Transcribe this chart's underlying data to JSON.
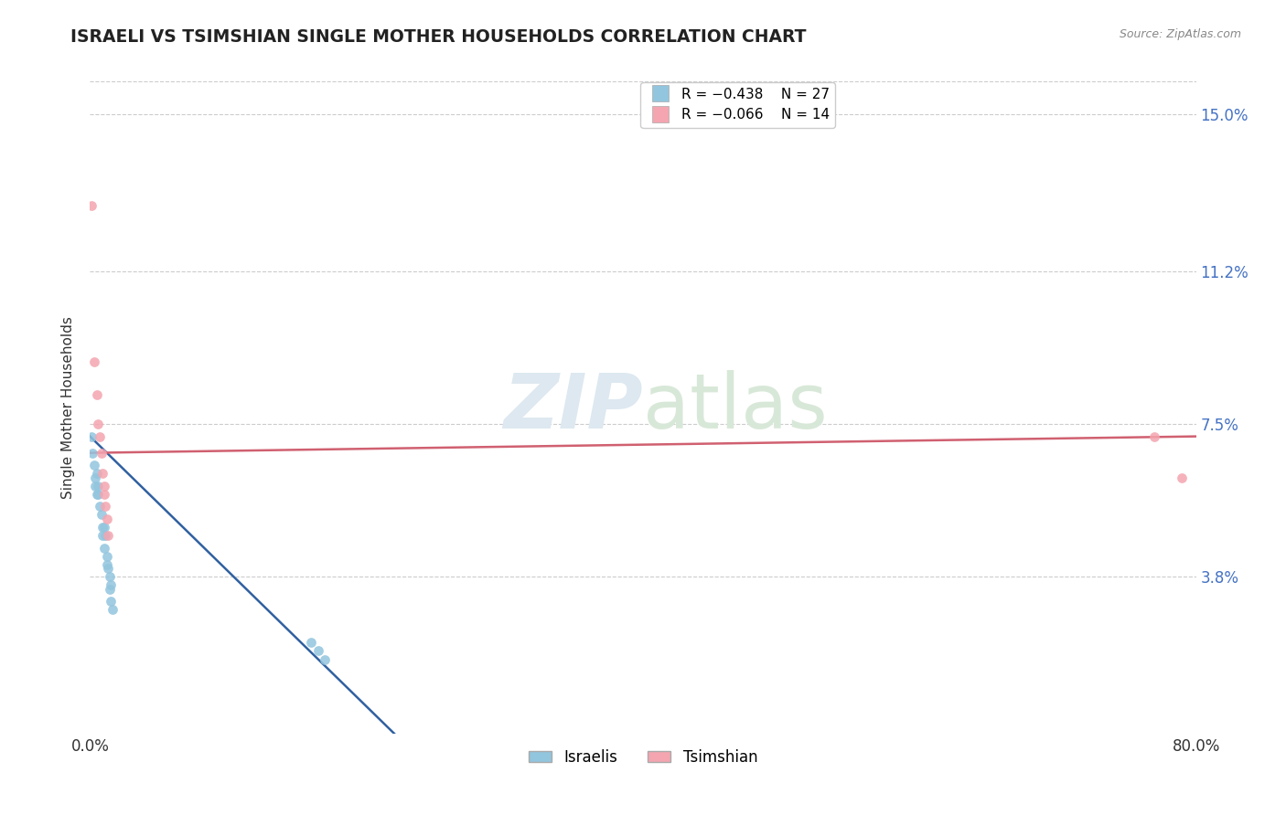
{
  "title": "ISRAELI VS TSIMSHIAN SINGLE MOTHER HOUSEHOLDS CORRELATION CHART",
  "source": "Source: ZipAtlas.com",
  "ylabel": "Single Mother Households",
  "xlim": [
    0.0,
    0.8
  ],
  "ylim": [
    0.0,
    0.158
  ],
  "xticks": [
    0.0,
    0.8
  ],
  "xticklabels": [
    "0.0%",
    "80.0%"
  ],
  "ytick_values": [
    0.038,
    0.075,
    0.112,
    0.15
  ],
  "ytick_labels": [
    "3.8%",
    "7.5%",
    "11.2%",
    "15.0%"
  ],
  "legend_r1": "R = −0.438",
  "legend_n1": "N = 27",
  "legend_r2": "R = −0.066",
  "legend_n2": "N = 14",
  "color_israeli": "#92c5de",
  "color_tsimshian": "#f4a5b0",
  "trendline_color_israeli": "#3060a0",
  "trendline_color_tsimshian": "#d06070",
  "background_color": "#ffffff",
  "grid_color": "#cccccc",
  "israeli_x": [
    0.001,
    0.002,
    0.003,
    0.004,
    0.004,
    0.005,
    0.005,
    0.006,
    0.006,
    0.007,
    0.008,
    0.009,
    0.009,
    0.01,
    0.01,
    0.011,
    0.012,
    0.012,
    0.013,
    0.014,
    0.014,
    0.015,
    0.015,
    0.016,
    0.16,
    0.165,
    0.17
  ],
  "israeli_y": [
    0.072,
    0.068,
    0.065,
    0.062,
    0.06,
    0.063,
    0.058,
    0.06,
    0.058,
    0.055,
    0.053,
    0.05,
    0.048,
    0.05,
    0.045,
    0.048,
    0.043,
    0.041,
    0.04,
    0.038,
    0.035,
    0.036,
    0.032,
    0.03,
    0.022,
    0.02,
    0.018
  ],
  "tsimshian_x": [
    0.001,
    0.003,
    0.005,
    0.006,
    0.007,
    0.008,
    0.009,
    0.01,
    0.01,
    0.011,
    0.012,
    0.013,
    0.77,
    0.79
  ],
  "tsimshian_y": [
    0.128,
    0.09,
    0.082,
    0.075,
    0.072,
    0.068,
    0.063,
    0.06,
    0.058,
    0.055,
    0.052,
    0.048,
    0.072,
    0.062
  ],
  "israeli_trend_x0": 0.0,
  "israeli_trend_y0": 0.072,
  "israeli_trend_x1": 0.22,
  "israeli_trend_y1": 0.0,
  "tsimshian_trend_x0": 0.0,
  "tsimshian_trend_y0": 0.068,
  "tsimshian_trend_x1": 0.8,
  "tsimshian_trend_y1": 0.072
}
